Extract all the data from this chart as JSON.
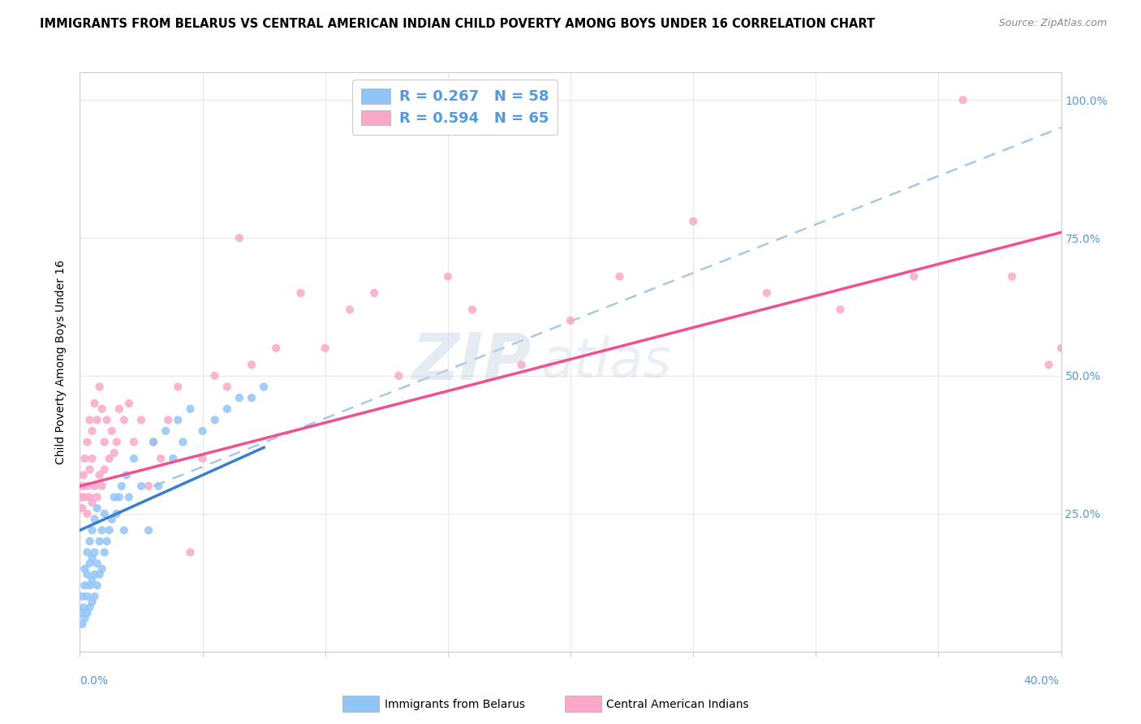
{
  "title": "IMMIGRANTS FROM BELARUS VS CENTRAL AMERICAN INDIAN CHILD POVERTY AMONG BOYS UNDER 16 CORRELATION CHART",
  "source": "Source: ZipAtlas.com",
  "ylabel": "Child Poverty Among Boys Under 16",
  "watermark_line1": "ZIP",
  "watermark_line2": "atlas",
  "blue_color": "#92c5f7",
  "pink_color": "#f9a8c9",
  "blue_line_color": "#3a7fcc",
  "pink_line_color": "#f05090",
  "dashed_line_color": "#a8c8e8",
  "xlim": [
    0.0,
    0.4
  ],
  "ylim": [
    0.0,
    1.05
  ],
  "yticks": [
    0.0,
    0.25,
    0.5,
    0.75,
    1.0
  ],
  "ytick_labels": [
    "",
    "25.0%",
    "50.0%",
    "75.0%",
    "100.0%"
  ],
  "blue_scatter_x": [
    0.0005,
    0.001,
    0.001,
    0.0015,
    0.002,
    0.002,
    0.002,
    0.003,
    0.003,
    0.003,
    0.003,
    0.004,
    0.004,
    0.004,
    0.004,
    0.005,
    0.005,
    0.005,
    0.005,
    0.006,
    0.006,
    0.006,
    0.006,
    0.007,
    0.007,
    0.007,
    0.008,
    0.008,
    0.009,
    0.009,
    0.01,
    0.01,
    0.011,
    0.012,
    0.013,
    0.014,
    0.015,
    0.016,
    0.017,
    0.018,
    0.019,
    0.02,
    0.022,
    0.025,
    0.028,
    0.03,
    0.032,
    0.035,
    0.038,
    0.04,
    0.042,
    0.045,
    0.05,
    0.055,
    0.06,
    0.065,
    0.07,
    0.075
  ],
  "blue_scatter_y": [
    0.07,
    0.05,
    0.1,
    0.08,
    0.06,
    0.12,
    0.15,
    0.07,
    0.1,
    0.14,
    0.18,
    0.08,
    0.12,
    0.16,
    0.2,
    0.09,
    0.13,
    0.17,
    0.22,
    0.1,
    0.14,
    0.18,
    0.24,
    0.12,
    0.16,
    0.26,
    0.14,
    0.2,
    0.15,
    0.22,
    0.18,
    0.25,
    0.2,
    0.22,
    0.24,
    0.28,
    0.25,
    0.28,
    0.3,
    0.22,
    0.32,
    0.28,
    0.35,
    0.3,
    0.22,
    0.38,
    0.3,
    0.4,
    0.35,
    0.42,
    0.38,
    0.44,
    0.4,
    0.42,
    0.44,
    0.46,
    0.46,
    0.48
  ],
  "pink_scatter_x": [
    0.0005,
    0.001,
    0.001,
    0.0015,
    0.002,
    0.002,
    0.003,
    0.003,
    0.003,
    0.004,
    0.004,
    0.004,
    0.005,
    0.005,
    0.005,
    0.006,
    0.006,
    0.007,
    0.007,
    0.008,
    0.008,
    0.009,
    0.009,
    0.01,
    0.01,
    0.011,
    0.012,
    0.013,
    0.014,
    0.015,
    0.016,
    0.018,
    0.02,
    0.022,
    0.025,
    0.028,
    0.03,
    0.033,
    0.036,
    0.04,
    0.045,
    0.05,
    0.055,
    0.06,
    0.065,
    0.07,
    0.08,
    0.09,
    0.1,
    0.11,
    0.12,
    0.13,
    0.15,
    0.16,
    0.18,
    0.2,
    0.22,
    0.25,
    0.28,
    0.31,
    0.34,
    0.36,
    0.38,
    0.395,
    0.4
  ],
  "pink_scatter_y": [
    0.28,
    0.3,
    0.26,
    0.32,
    0.28,
    0.35,
    0.25,
    0.3,
    0.38,
    0.28,
    0.33,
    0.42,
    0.27,
    0.35,
    0.4,
    0.3,
    0.45,
    0.28,
    0.42,
    0.32,
    0.48,
    0.3,
    0.44,
    0.33,
    0.38,
    0.42,
    0.35,
    0.4,
    0.36,
    0.38,
    0.44,
    0.42,
    0.45,
    0.38,
    0.42,
    0.3,
    0.38,
    0.35,
    0.42,
    0.48,
    0.18,
    0.35,
    0.5,
    0.48,
    0.75,
    0.52,
    0.55,
    0.65,
    0.55,
    0.62,
    0.65,
    0.5,
    0.68,
    0.62,
    0.52,
    0.6,
    0.68,
    0.78,
    0.65,
    0.62,
    0.68,
    1.0,
    0.68,
    0.52,
    0.55
  ],
  "blue_line_x": [
    0.0,
    0.075
  ],
  "blue_line_y": [
    0.22,
    0.37
  ],
  "pink_line_x": [
    0.0,
    0.4
  ],
  "pink_line_y": [
    0.3,
    0.76
  ],
  "dashed_line_x": [
    0.03,
    0.4
  ],
  "dashed_line_y": [
    0.3,
    0.95
  ],
  "legend_R1": "R = 0.267",
  "legend_N1": "N = 58",
  "legend_R2": "R = 0.594",
  "legend_N2": "N = 65",
  "legend_label1": "Immigrants from Belarus",
  "legend_label2": "Central American Indians"
}
